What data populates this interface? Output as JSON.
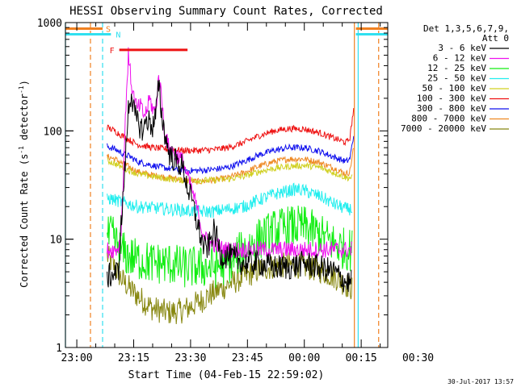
{
  "chart_data": {
    "type": "line",
    "title": "HESSI Observing Summary Count Rates, Corrected",
    "xlabel": "Start Time (04-Feb-15 22:59:02)",
    "ylabel_main": "Corrected Count Rate (s",
    "ylabel_sup1": "-1",
    "ylabel_mid": " detector",
    "ylabel_sup2": "-1",
    "ylabel_end": ")",
    "x_unit": "minutes after 23:00",
    "xlim": [
      -1.5,
      41
    ],
    "ylim": [
      1,
      1000
    ],
    "y_scale": "log",
    "x_ticks": [
      {
        "value": 0,
        "label": "23:00"
      },
      {
        "value": 7.5,
        "label": "23:15"
      },
      {
        "value": 15,
        "label": "23:30"
      },
      {
        "value": 22.5,
        "label": "23:45"
      },
      {
        "value": 30,
        "label": "00:00"
      },
      {
        "value": 37.5,
        "label": "00:15"
      },
      {
        "value": 45,
        "label": "00:30"
      }
    ],
    "y_ticks": [
      {
        "value": 1,
        "label": "1"
      },
      {
        "value": 10,
        "label": "10"
      },
      {
        "value": 100,
        "label": "100"
      },
      {
        "value": 1000,
        "label": "1000"
      }
    ],
    "legend_header": [
      "Det 1,3,5,6,7,9,",
      "Att 0"
    ],
    "legend_placement": "right",
    "flags": [
      {
        "name": "S",
        "x_start": -1.5,
        "x_end": 3.4,
        "y": 880,
        "color": "#f08020"
      },
      {
        "name": "N",
        "x_start": -1.5,
        "x_end": 4.5,
        "y": 780,
        "color": "#30e0f0"
      },
      {
        "name": "F",
        "x_start": 5.6,
        "x_end": 14.6,
        "y": 560,
        "color": "#ee1111"
      },
      {
        "name": "S",
        "x_start": 36.8,
        "x_end": 41,
        "y": 880,
        "color": "#f08020"
      },
      {
        "name": "N",
        "x_start": 36.8,
        "x_end": 41,
        "y": 780,
        "color": "#30e0f0"
      }
    ],
    "vlines": [
      {
        "x": -1.5,
        "color": "#30e0f0",
        "dashed": false
      },
      {
        "x": 1.8,
        "color": "#f08020",
        "dashed": true
      },
      {
        "x": 3.4,
        "color": "#30e0f0",
        "dashed": true
      },
      {
        "x": 36.6,
        "color": "#f08020",
        "dashed": false
      },
      {
        "x": 37.1,
        "color": "#30e0f0",
        "dashed": false
      },
      {
        "x": 39.8,
        "color": "#f08020",
        "dashed": true
      }
    ],
    "series": [
      {
        "name": "3 - 6 keV",
        "color": "#000000",
        "noise": 0.12,
        "x": [
          4.0,
          5.5,
          5.8,
          6.3,
          6.8,
          7.2,
          7.6,
          8.0,
          8.4,
          8.8,
          9.2,
          9.6,
          10.0,
          10.4,
          10.8,
          11.2,
          11.6,
          12.0,
          12.3,
          12.8,
          13.3,
          13.8,
          14.2,
          14.6,
          15.2,
          16.0,
          16.6,
          17.0,
          17.5,
          18.0,
          18.5,
          19.0,
          19.5,
          20.0,
          21.0,
          22.0,
          24.0,
          26.0,
          28.0,
          30.0,
          32.0,
          34.0,
          35.5,
          36.2
        ],
        "y": [
          4.5,
          5,
          12,
          40,
          160,
          230,
          140,
          120,
          110,
          100,
          130,
          120,
          110,
          140,
          260,
          140,
          95,
          70,
          60,
          55,
          50,
          48,
          40,
          30,
          22,
          13,
          9,
          8,
          9,
          12,
          10,
          7,
          7,
          7,
          6.5,
          6,
          6,
          5.5,
          5.5,
          6,
          5.5,
          5,
          4,
          4
        ]
      },
      {
        "name": "6 - 12 keV",
        "color": "#ee11ee",
        "noise": 0.08,
        "x": [
          4.0,
          5.2,
          5.5,
          5.8,
          6.2,
          6.5,
          6.8,
          7.2,
          7.6,
          8.0,
          8.4,
          8.8,
          9.2,
          9.6,
          10.0,
          10.4,
          10.8,
          11.2,
          11.6,
          12.0,
          12.5,
          13.0,
          13.5,
          14.0,
          14.6,
          15.2,
          15.8,
          16.4,
          17.0,
          17.6,
          18.2,
          18.8,
          19.4,
          20.0,
          21.0,
          22.0,
          24.0,
          26.0,
          28.0,
          30.0,
          32.0,
          34.0,
          36.0,
          36.3
        ],
        "y": [
          8,
          8,
          8.5,
          10,
          50,
          200,
          500,
          270,
          190,
          160,
          170,
          140,
          150,
          200,
          160,
          150,
          320,
          200,
          95,
          75,
          65,
          60,
          58,
          52,
          38,
          28,
          20,
          13,
          10,
          9,
          9,
          8.5,
          8,
          8,
          8,
          8,
          8,
          8,
          8,
          8,
          8,
          8,
          8,
          8
        ]
      },
      {
        "name": "12 - 25 keV",
        "color": "#11ee11",
        "noise": 0.2,
        "x": [
          4.0,
          4.6,
          5.2,
          5.8,
          6.6,
          8.0,
          10.0,
          12.0,
          14.0,
          16.0,
          18.0,
          20.0,
          22.0,
          24.0,
          26.0,
          28.0,
          30.0,
          32.0,
          34.0,
          35.5,
          36.3
        ],
        "y": [
          10,
          11,
          9,
          8,
          7,
          6.5,
          6,
          6,
          5.5,
          5.5,
          5.5,
          6,
          8,
          10,
          12,
          13,
          13,
          11,
          9,
          8,
          8
        ]
      },
      {
        "name": "25 - 50 keV",
        "color": "#22eeee",
        "noise": 0.06,
        "x": [
          4.0,
          5.0,
          6.0,
          7.0,
          8.0,
          10.0,
          12.0,
          14.0,
          16.0,
          18.0,
          20.0,
          22.0,
          24.0,
          26.0,
          28.0,
          29.0,
          30.0,
          32.0,
          34.0,
          35.5,
          36.3
        ],
        "y": [
          24,
          23,
          22,
          21,
          20,
          19.5,
          19,
          18.5,
          18,
          18,
          19,
          20,
          23,
          26,
          28,
          29,
          28,
          25,
          21,
          19,
          19
        ]
      },
      {
        "name": "50 - 100 keV",
        "color": "#d0d020",
        "noise": 0.03,
        "x": [
          4.0,
          5.0,
          6.0,
          7.0,
          8.0,
          10.0,
          12.0,
          14.0,
          16.0,
          18.0,
          20.0,
          22.0,
          24.0,
          26.0,
          28.0,
          30.0,
          32.0,
          34.0,
          35.5,
          36.3
        ],
        "y": [
          53,
          50,
          46,
          43,
          40,
          38,
          36,
          35,
          35,
          35,
          36,
          38,
          42,
          45,
          47,
          48,
          46,
          41,
          37,
          37
        ]
      },
      {
        "name": "100 - 300 keV",
        "color": "#ee1111",
        "noise": 0.03,
        "x": [
          4.0,
          5.0,
          6.0,
          7.0,
          8.0,
          10.0,
          12.0,
          14.0,
          16.0,
          18.0,
          20.0,
          22.0,
          24.0,
          26.0,
          28.0,
          30.0,
          32.0,
          34.0,
          35.5,
          36.0,
          36.5
        ],
        "y": [
          108,
          100,
          90,
          82,
          75,
          70,
          68,
          66,
          66,
          67,
          70,
          78,
          90,
          100,
          105,
          104,
          96,
          85,
          78,
          85,
          160
        ]
      },
      {
        "name": "300 - 800 keV",
        "color": "#1111ee",
        "noise": 0.03,
        "x": [
          4.0,
          5.0,
          6.0,
          7.0,
          8.0,
          10.0,
          12.0,
          14.0,
          16.0,
          18.0,
          20.0,
          22.0,
          24.0,
          26.0,
          28.0,
          30.0,
          32.0,
          34.0,
          35.5,
          36.0,
          36.5
        ],
        "y": [
          72,
          68,
          62,
          58,
          52,
          48,
          45,
          43,
          43,
          44,
          46,
          52,
          60,
          66,
          70,
          70,
          65,
          57,
          52,
          55,
          90
        ]
      },
      {
        "name": "800 - 7000 keV",
        "color": "#ee8822",
        "noise": 0.03,
        "x": [
          4.0,
          5.0,
          6.0,
          7.0,
          8.0,
          10.0,
          12.0,
          14.0,
          16.0,
          18.0,
          20.0,
          22.0,
          24.0,
          26.0,
          28.0,
          30.0,
          32.0,
          34.0,
          35.5,
          36.0,
          36.5
        ],
        "y": [
          58,
          55,
          50,
          46,
          42,
          39,
          37,
          35,
          34,
          35,
          37,
          41,
          47,
          52,
          55,
          55,
          51,
          45,
          40,
          42,
          70
        ]
      },
      {
        "name": "7000 - 20000 keV",
        "color": "#888811",
        "noise": 0.12,
        "x": [
          4.0,
          5.0,
          6.0,
          7.0,
          8.0,
          9.0,
          10.0,
          11.0,
          12.0,
          14.0,
          16.0,
          18.0,
          20.0,
          22.0,
          24.0,
          26.0,
          28.0,
          30.0,
          32.0,
          34.0,
          35.5,
          36.3
        ],
        "y": [
          7,
          5.5,
          4.2,
          3.5,
          3,
          2.6,
          2.3,
          2.2,
          2.1,
          2.2,
          2.6,
          3.2,
          3.8,
          4.5,
          5.2,
          5.6,
          5.8,
          5.6,
          5.2,
          4.5,
          3.8,
          3.5
        ]
      }
    ]
  },
  "footer": {
    "date": "30-Jul-2017 13:57"
  }
}
